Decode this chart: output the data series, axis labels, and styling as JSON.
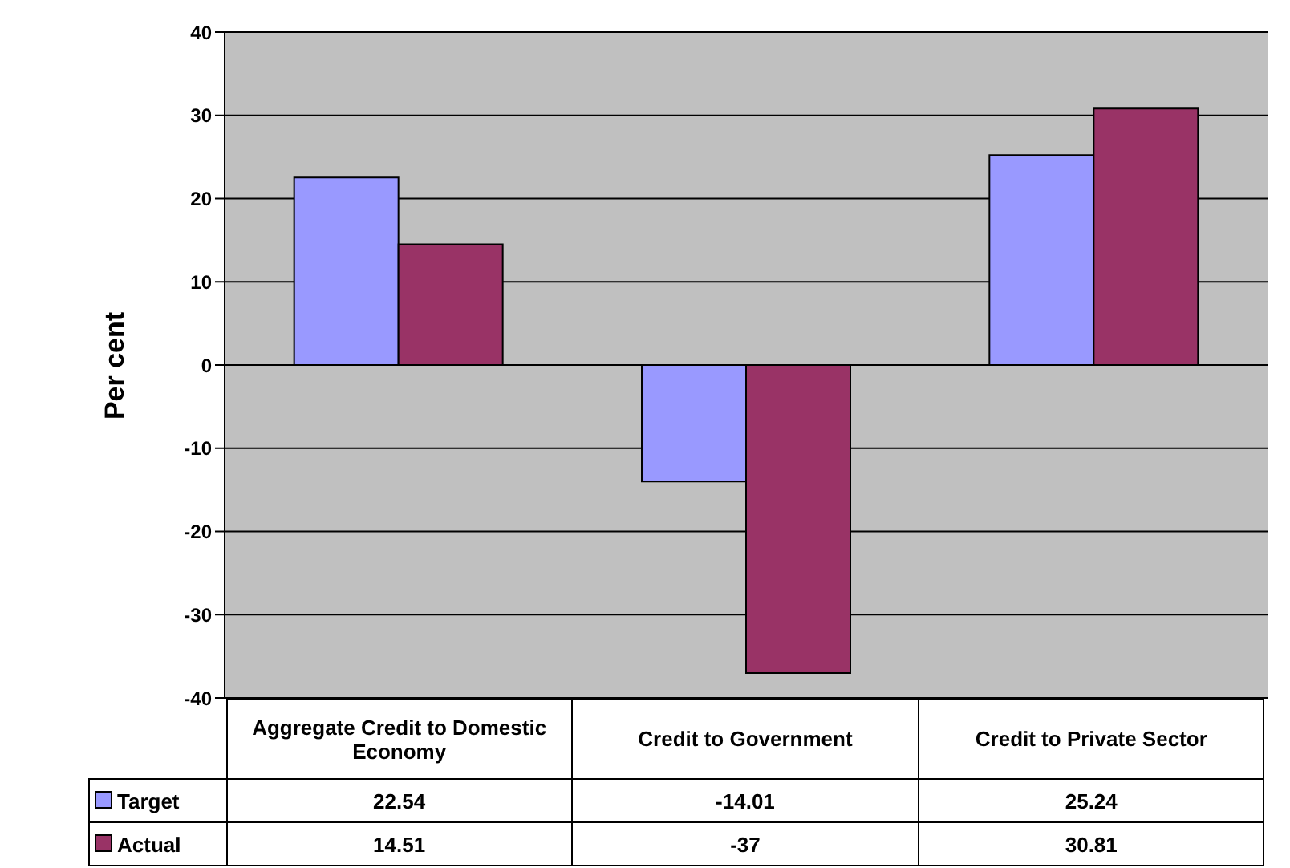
{
  "chart_data": {
    "type": "bar",
    "ylabel": "Per cent",
    "categories": [
      "Aggregate Credit to Domestic Economy",
      "Credit to Government",
      "Credit to Private Sector"
    ],
    "series": [
      {
        "name": "Target",
        "color": "#9999ff",
        "values": [
          22.54,
          -14.01,
          25.24
        ]
      },
      {
        "name": "Actual",
        "color": "#993366",
        "values": [
          14.51,
          -37,
          30.81
        ]
      }
    ],
    "ylim": [
      -40,
      40
    ],
    "yticks": [
      -40,
      -30,
      -20,
      -10,
      0,
      10,
      20,
      30,
      40
    ],
    "grid": "y",
    "legend": "bottom",
    "data_labels": true
  }
}
